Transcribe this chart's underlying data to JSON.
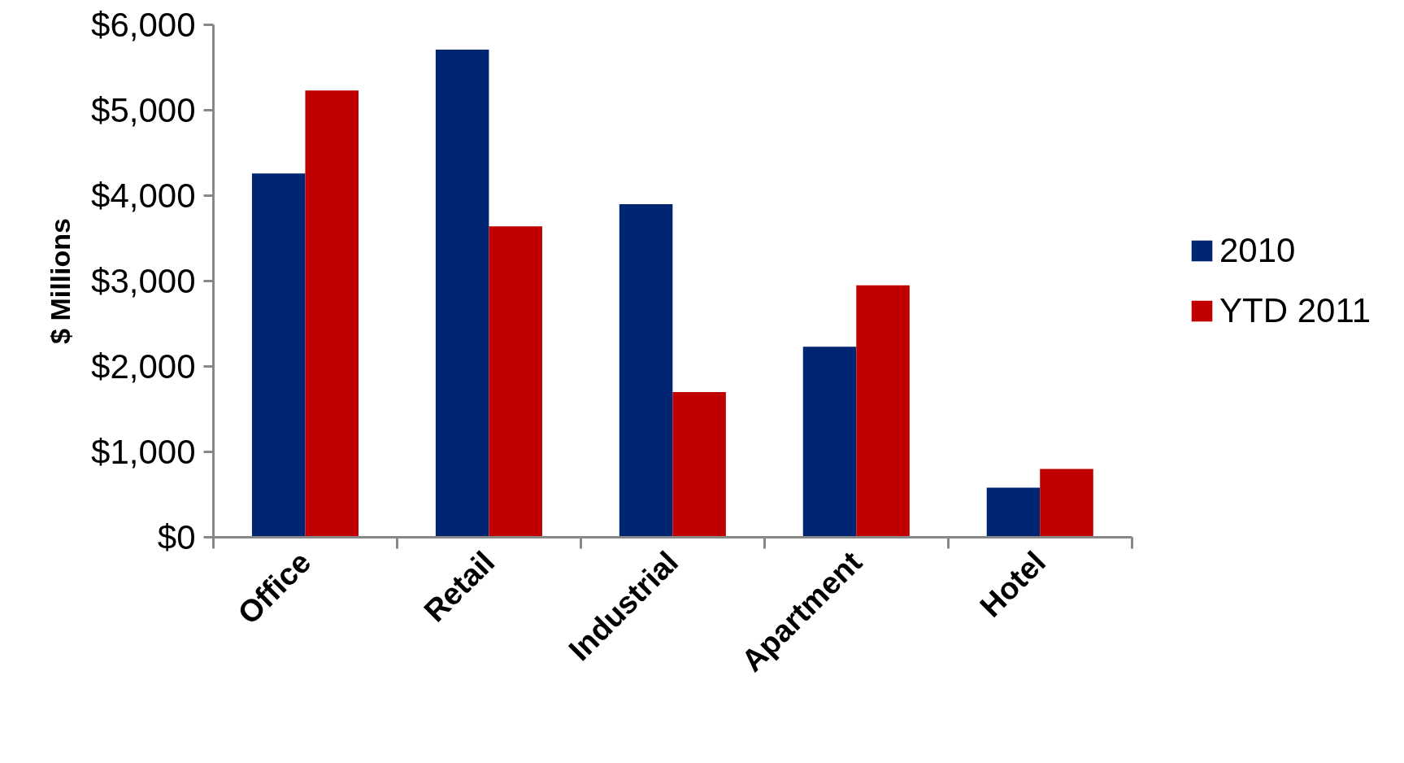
{
  "chart_data": {
    "type": "bar",
    "ylabel": "$ Millions",
    "categories": [
      "Office",
      "Retail",
      "Industrial",
      "Apartment",
      "Hotel"
    ],
    "series": [
      {
        "name": "2010",
        "color": "#002673",
        "values": [
          4260,
          5710,
          3900,
          2230,
          580
        ]
      },
      {
        "name": "YTD 2011",
        "color": "#c00000",
        "values": [
          5230,
          3640,
          1700,
          2950,
          800
        ]
      }
    ],
    "ylim": [
      0,
      6000
    ],
    "yticks": [
      {
        "value": 0,
        "label": "$0"
      },
      {
        "value": 1000,
        "label": "$1,000"
      },
      {
        "value": 2000,
        "label": "$2,000"
      },
      {
        "value": 3000,
        "label": "$3,000"
      },
      {
        "value": 4000,
        "label": "$4,000"
      },
      {
        "value": 5000,
        "label": "$5,000"
      },
      {
        "value": 6000,
        "label": "$6,000"
      }
    ],
    "grid": false,
    "legend": "right"
  }
}
